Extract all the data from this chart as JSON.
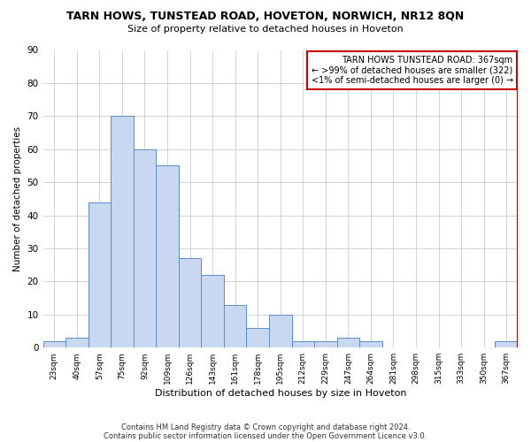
{
  "title": "TARN HOWS, TUNSTEAD ROAD, HOVETON, NORWICH, NR12 8QN",
  "subtitle": "Size of property relative to detached houses in Hoveton",
  "xlabel": "Distribution of detached houses by size in Hoveton",
  "ylabel": "Number of detached properties",
  "bar_color": "#c8d8f0",
  "bar_edge_color": "#5b8ec9",
  "categories": [
    "23sqm",
    "40sqm",
    "57sqm",
    "75sqm",
    "92sqm",
    "109sqm",
    "126sqm",
    "143sqm",
    "161sqm",
    "178sqm",
    "195sqm",
    "212sqm",
    "229sqm",
    "247sqm",
    "264sqm",
    "281sqm",
    "298sqm",
    "315sqm",
    "333sqm",
    "350sqm",
    "367sqm"
  ],
  "values": [
    2,
    3,
    44,
    70,
    60,
    55,
    27,
    22,
    13,
    6,
    10,
    2,
    2,
    3,
    2,
    0,
    0,
    0,
    0,
    0,
    2
  ],
  "ylim": [
    0,
    90
  ],
  "yticks": [
    0,
    10,
    20,
    30,
    40,
    50,
    60,
    70,
    80,
    90
  ],
  "highlight_color": "#cc0000",
  "annotation_title": "TARN HOWS TUNSTEAD ROAD: 367sqm",
  "annotation_line1": "← >99% of detached houses are smaller (322)",
  "annotation_line2": "<1% of semi-detached houses are larger (0) →",
  "footer_line1": "Contains HM Land Registry data © Crown copyright and database right 2024.",
  "footer_line2": "Contains public sector information licensed under the Open Government Licence v3.0.",
  "background_color": "#ffffff",
  "grid_color": "#cccccc"
}
